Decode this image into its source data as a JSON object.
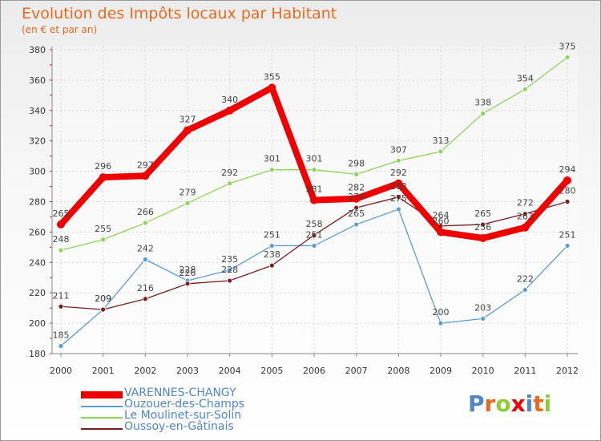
{
  "chart_data": {
    "type": "line",
    "title": "Evolution des Impôts locaux par Habitant",
    "subtitle": "(en € et par an)",
    "xlabel": "",
    "ylabel": "",
    "categories": [
      "2000",
      "2001",
      "2002",
      "2003",
      "2004",
      "2005",
      "2006",
      "2007",
      "2008",
      "2009",
      "2010",
      "2011",
      "2012"
    ],
    "ylim": [
      180,
      380
    ],
    "yticks": [
      180,
      200,
      220,
      240,
      260,
      280,
      300,
      320,
      340,
      360,
      380
    ],
    "grid": true,
    "legend_position": "bottom-left",
    "series": [
      {
        "name": "VARENNES-CHANGY",
        "color": "#ee0000",
        "values": [
          265,
          296,
          297,
          327,
          340,
          355,
          281,
          282,
          292,
          260,
          256,
          263,
          294
        ],
        "labels": [
          "265",
          "296",
          "297",
          "327",
          "340",
          "355",
          "281",
          "282",
          "292",
          "260",
          "256",
          "263",
          "294"
        ]
      },
      {
        "name": "Ouzouer-des-Champs",
        "color": "#5b9bd5",
        "values": [
          185,
          209,
          242,
          228,
          235,
          251,
          251,
          265,
          275,
          200,
          203,
          222,
          251
        ],
        "labels": [
          "185",
          "209",
          "242",
          "228",
          "235",
          "251",
          "251",
          "265",
          "275",
          "200",
          "203",
          "222",
          "251"
        ]
      },
      {
        "name": "Le Moulinet-sur-Solin",
        "color": "#8fd45a",
        "values": [
          248,
          255,
          266,
          279,
          292,
          301,
          301,
          298,
          307,
          313,
          338,
          354,
          375
        ],
        "labels": [
          "248",
          "255",
          "266",
          "279",
          "292",
          "301",
          "301",
          "298",
          "307",
          "313",
          "338",
          "354",
          "375"
        ]
      },
      {
        "name": "Oussoy-en-Gâtinais",
        "color": "#7a1f1f",
        "values": [
          211,
          209,
          216,
          226,
          228,
          238,
          258,
          276,
          283,
          264,
          265,
          272,
          280
        ],
        "labels": [
          "211",
          "209",
          "216",
          "226",
          "228",
          "238",
          "258",
          "276",
          "283",
          "264",
          "265",
          "272",
          "280"
        ]
      }
    ]
  },
  "logo": {
    "text": "Proxiti",
    "letters": [
      "P",
      "r",
      "o",
      "x",
      "i",
      "t",
      "i"
    ],
    "colors": [
      "#4f86c6",
      "#e8691f",
      "#8fcc3a",
      "#ee0000",
      "#4f86c6",
      "#e8691f",
      "#8fcc3a"
    ]
  }
}
